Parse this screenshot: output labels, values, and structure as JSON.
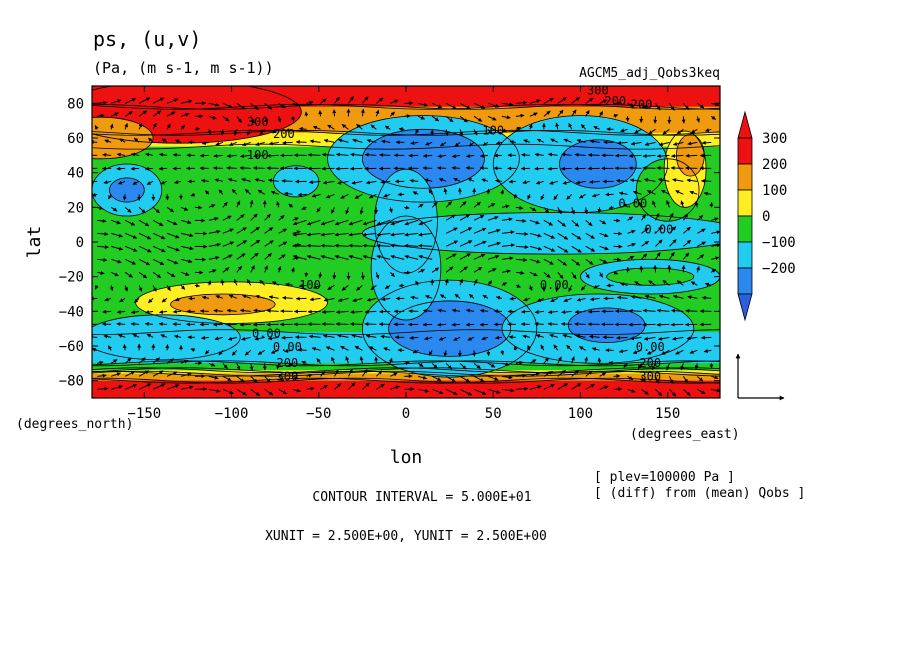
{
  "figure": {
    "title": "ps, (u,v)",
    "subtitle": "(Pa, (m s-1, m s-1))",
    "experiment": "AGCM5_adj_Qobs3keq",
    "xlabel": "lon",
    "ylabel": "lat",
    "x_unit_label": "(degrees_east)",
    "y_unit_label": "(degrees_north)",
    "contour_interval": "CONTOUR INTERVAL = 5.000E+01",
    "vector_units": "XUNIT = 2.500E+00, YUNIT = 2.500E+00",
    "plev_note": "[ plev=100000 Pa ]",
    "diff_note": "[ (diff) from (mean) Qobs ]"
  },
  "chart_data": {
    "type": "heatmap",
    "x_ticks": [
      -150,
      -100,
      -50,
      0,
      50,
      100,
      150
    ],
    "y_ticks": [
      80,
      60,
      40,
      20,
      0,
      -20,
      -40,
      -60,
      -80
    ],
    "xlim": [
      -180,
      180
    ],
    "ylim": [
      -90,
      90
    ],
    "colorbar": {
      "labels": [
        "300",
        "200",
        "100",
        "0",
        "-100",
        "-200"
      ],
      "colors": [
        "#ee1111",
        "#f09a10",
        "#ffee22",
        "#22cc22",
        "#22ccf0",
        "#2a88ee"
      ],
      "extend_top_color": "#ee1111",
      "extend_bottom_color": "#2a60dd"
    },
    "contour_labels": [
      {
        "text": "300",
        "lon": -85,
        "lat": 67
      },
      {
        "text": "200",
        "lon": -70,
        "lat": 60
      },
      {
        "text": "100",
        "lon": -85,
        "lat": 48
      },
      {
        "text": "200",
        "lon": 120,
        "lat": 79
      },
      {
        "text": "300",
        "lon": 110,
        "lat": 85
      },
      {
        "text": "200",
        "lon": 135,
        "lat": 77
      },
      {
        "text": "100",
        "lon": 50,
        "lat": 62
      },
      {
        "text": "0.00",
        "lon": 145,
        "lat": 5
      },
      {
        "text": "0.00",
        "lon": 130,
        "lat": 20
      },
      {
        "text": "0.00",
        "lon": 85,
        "lat": -27
      },
      {
        "text": "100",
        "lon": -55,
        "lat": -27
      },
      {
        "text": "0.00",
        "lon": -80,
        "lat": -55
      },
      {
        "text": "0.00",
        "lon": -68,
        "lat": -63
      },
      {
        "text": "200",
        "lon": -68,
        "lat": -72
      },
      {
        "text": "300",
        "lon": -68,
        "lat": -80
      },
      {
        "text": "0.00",
        "lon": 140,
        "lat": -63
      },
      {
        "text": "200",
        "lon": 140,
        "lat": -72
      },
      {
        "text": "300",
        "lon": 140,
        "lat": -80
      }
    ],
    "regions": [
      {
        "level": 300,
        "lon": -130,
        "lat": 75,
        "rlon": 70,
        "rlat": 18
      },
      {
        "level": 200,
        "lon": -175,
        "lat": 60,
        "rlon": 30,
        "rlat": 12
      },
      {
        "level": -100,
        "lon": -160,
        "lat": 30,
        "rlon": 20,
        "rlat": 15
      },
      {
        "level": -200,
        "lon": -160,
        "lat": 30,
        "rlon": 10,
        "rlat": 7
      },
      {
        "level": -100,
        "lon": -63,
        "lat": 35,
        "rlon": 13,
        "rlat": 9
      },
      {
        "level": -100,
        "lon": 10,
        "lat": 48,
        "rlon": 55,
        "rlat": 25
      },
      {
        "level": -200,
        "lon": 10,
        "lat": 48,
        "rlon": 35,
        "rlat": 17
      },
      {
        "level": -100,
        "lon": 0,
        "lat": 12,
        "rlon": 18,
        "rlat": 30
      },
      {
        "level": -100,
        "lon": 100,
        "lat": 45,
        "rlon": 50,
        "rlat": 28
      },
      {
        "level": -200,
        "lon": 110,
        "lat": 45,
        "rlon": 22,
        "rlat": 14
      },
      {
        "level": -100,
        "lon": 85,
        "lat": 5,
        "rlon": 110,
        "rlat": 12
      },
      {
        "level": 0,
        "lon": 150,
        "lat": 30,
        "rlon": 18,
        "rlat": 18
      },
      {
        "level": 100,
        "lon": 160,
        "lat": 42,
        "rlon": 12,
        "rlat": 22
      },
      {
        "level": 200,
        "lon": 163,
        "lat": 50,
        "rlon": 8,
        "rlat": 12
      },
      {
        "level": -100,
        "lon": 140,
        "lat": -20,
        "rlon": 40,
        "rlat": 10
      },
      {
        "level": 0,
        "lon": 140,
        "lat": -20,
        "rlon": 25,
        "rlat": 5
      },
      {
        "level": 100,
        "lon": -100,
        "lat": -35,
        "rlon": 55,
        "rlat": 12
      },
      {
        "level": 200,
        "lon": -105,
        "lat": -36,
        "rlon": 30,
        "rlat": 6
      },
      {
        "level": -100,
        "lon": -140,
        "lat": -55,
        "rlon": 45,
        "rlat": 13
      },
      {
        "level": -100,
        "lon": 25,
        "lat": -50,
        "rlon": 50,
        "rlat": 28
      },
      {
        "level": -200,
        "lon": 25,
        "lat": -50,
        "rlon": 35,
        "rlat": 16
      },
      {
        "level": -100,
        "lon": 110,
        "lat": -50,
        "rlon": 55,
        "rlat": 20
      },
      {
        "level": -200,
        "lon": 115,
        "lat": -48,
        "rlon": 22,
        "rlat": 10
      },
      {
        "level": -100,
        "lon": 0,
        "lat": -15,
        "rlon": 20,
        "rlat": 30
      }
    ],
    "bands": [
      {
        "level": 300,
        "lat_from": 78,
        "lat_to": 90
      },
      {
        "level": 200,
        "lat_from": 63,
        "lat_to": 78
      },
      {
        "level": 100,
        "lat_from": 55,
        "lat_to": 63
      },
      {
        "level": -100,
        "lat_from": -70,
        "lat_to": -52
      },
      {
        "level": 0,
        "lat_from": -74,
        "lat_to": -70
      },
      {
        "level": 100,
        "lat_from": -76,
        "lat_to": -74
      },
      {
        "level": 200,
        "lat_from": -80,
        "lat_to": -76
      },
      {
        "level": 300,
        "lat_from": -90,
        "lat_to": -80
      }
    ],
    "background_level": 0
  }
}
